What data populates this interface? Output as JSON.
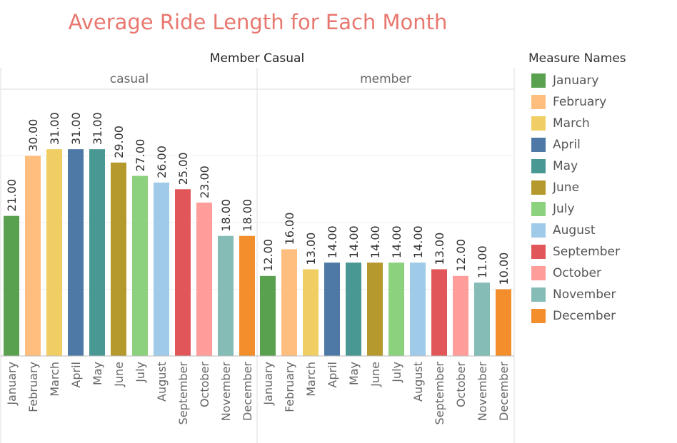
{
  "title": "Average Ride Length for Each Month",
  "chart_data": {
    "type": "bar",
    "column_header": "Member Casual",
    "categories": [
      "January",
      "February",
      "March",
      "April",
      "May",
      "June",
      "July",
      "August",
      "September",
      "October",
      "November",
      "December"
    ],
    "colors": [
      "#59a14f",
      "#ffbe7d",
      "#f1ce63",
      "#4e79a7",
      "#499894",
      "#b6992d",
      "#8cd17d",
      "#a0cbe8",
      "#e15759",
      "#ff9d9a",
      "#86bcb6",
      "#f28e2b"
    ],
    "panels": [
      {
        "name": "casual",
        "values": [
          21,
          30,
          31,
          31,
          31,
          29,
          27,
          26,
          25,
          23,
          18,
          18
        ],
        "labels": [
          "21.00",
          "30.00",
          "31.00",
          "31.00",
          "31.00",
          "29.00",
          "27.00",
          "26.00",
          "25.00",
          "23.00",
          "18.00",
          "18.00"
        ]
      },
      {
        "name": "member",
        "values": [
          12,
          16,
          13,
          14,
          14,
          14,
          14,
          14,
          13,
          12,
          11,
          10
        ],
        "labels": [
          "12.00",
          "16.00",
          "13.00",
          "14.00",
          "14.00",
          "14.00",
          "14.00",
          "14.00",
          "13.00",
          "12.00",
          "11.00",
          "10.00"
        ]
      }
    ],
    "ylim": [
      0,
      40
    ],
    "grid": true,
    "legend_title": "Measure Names",
    "legend_position": "right"
  }
}
